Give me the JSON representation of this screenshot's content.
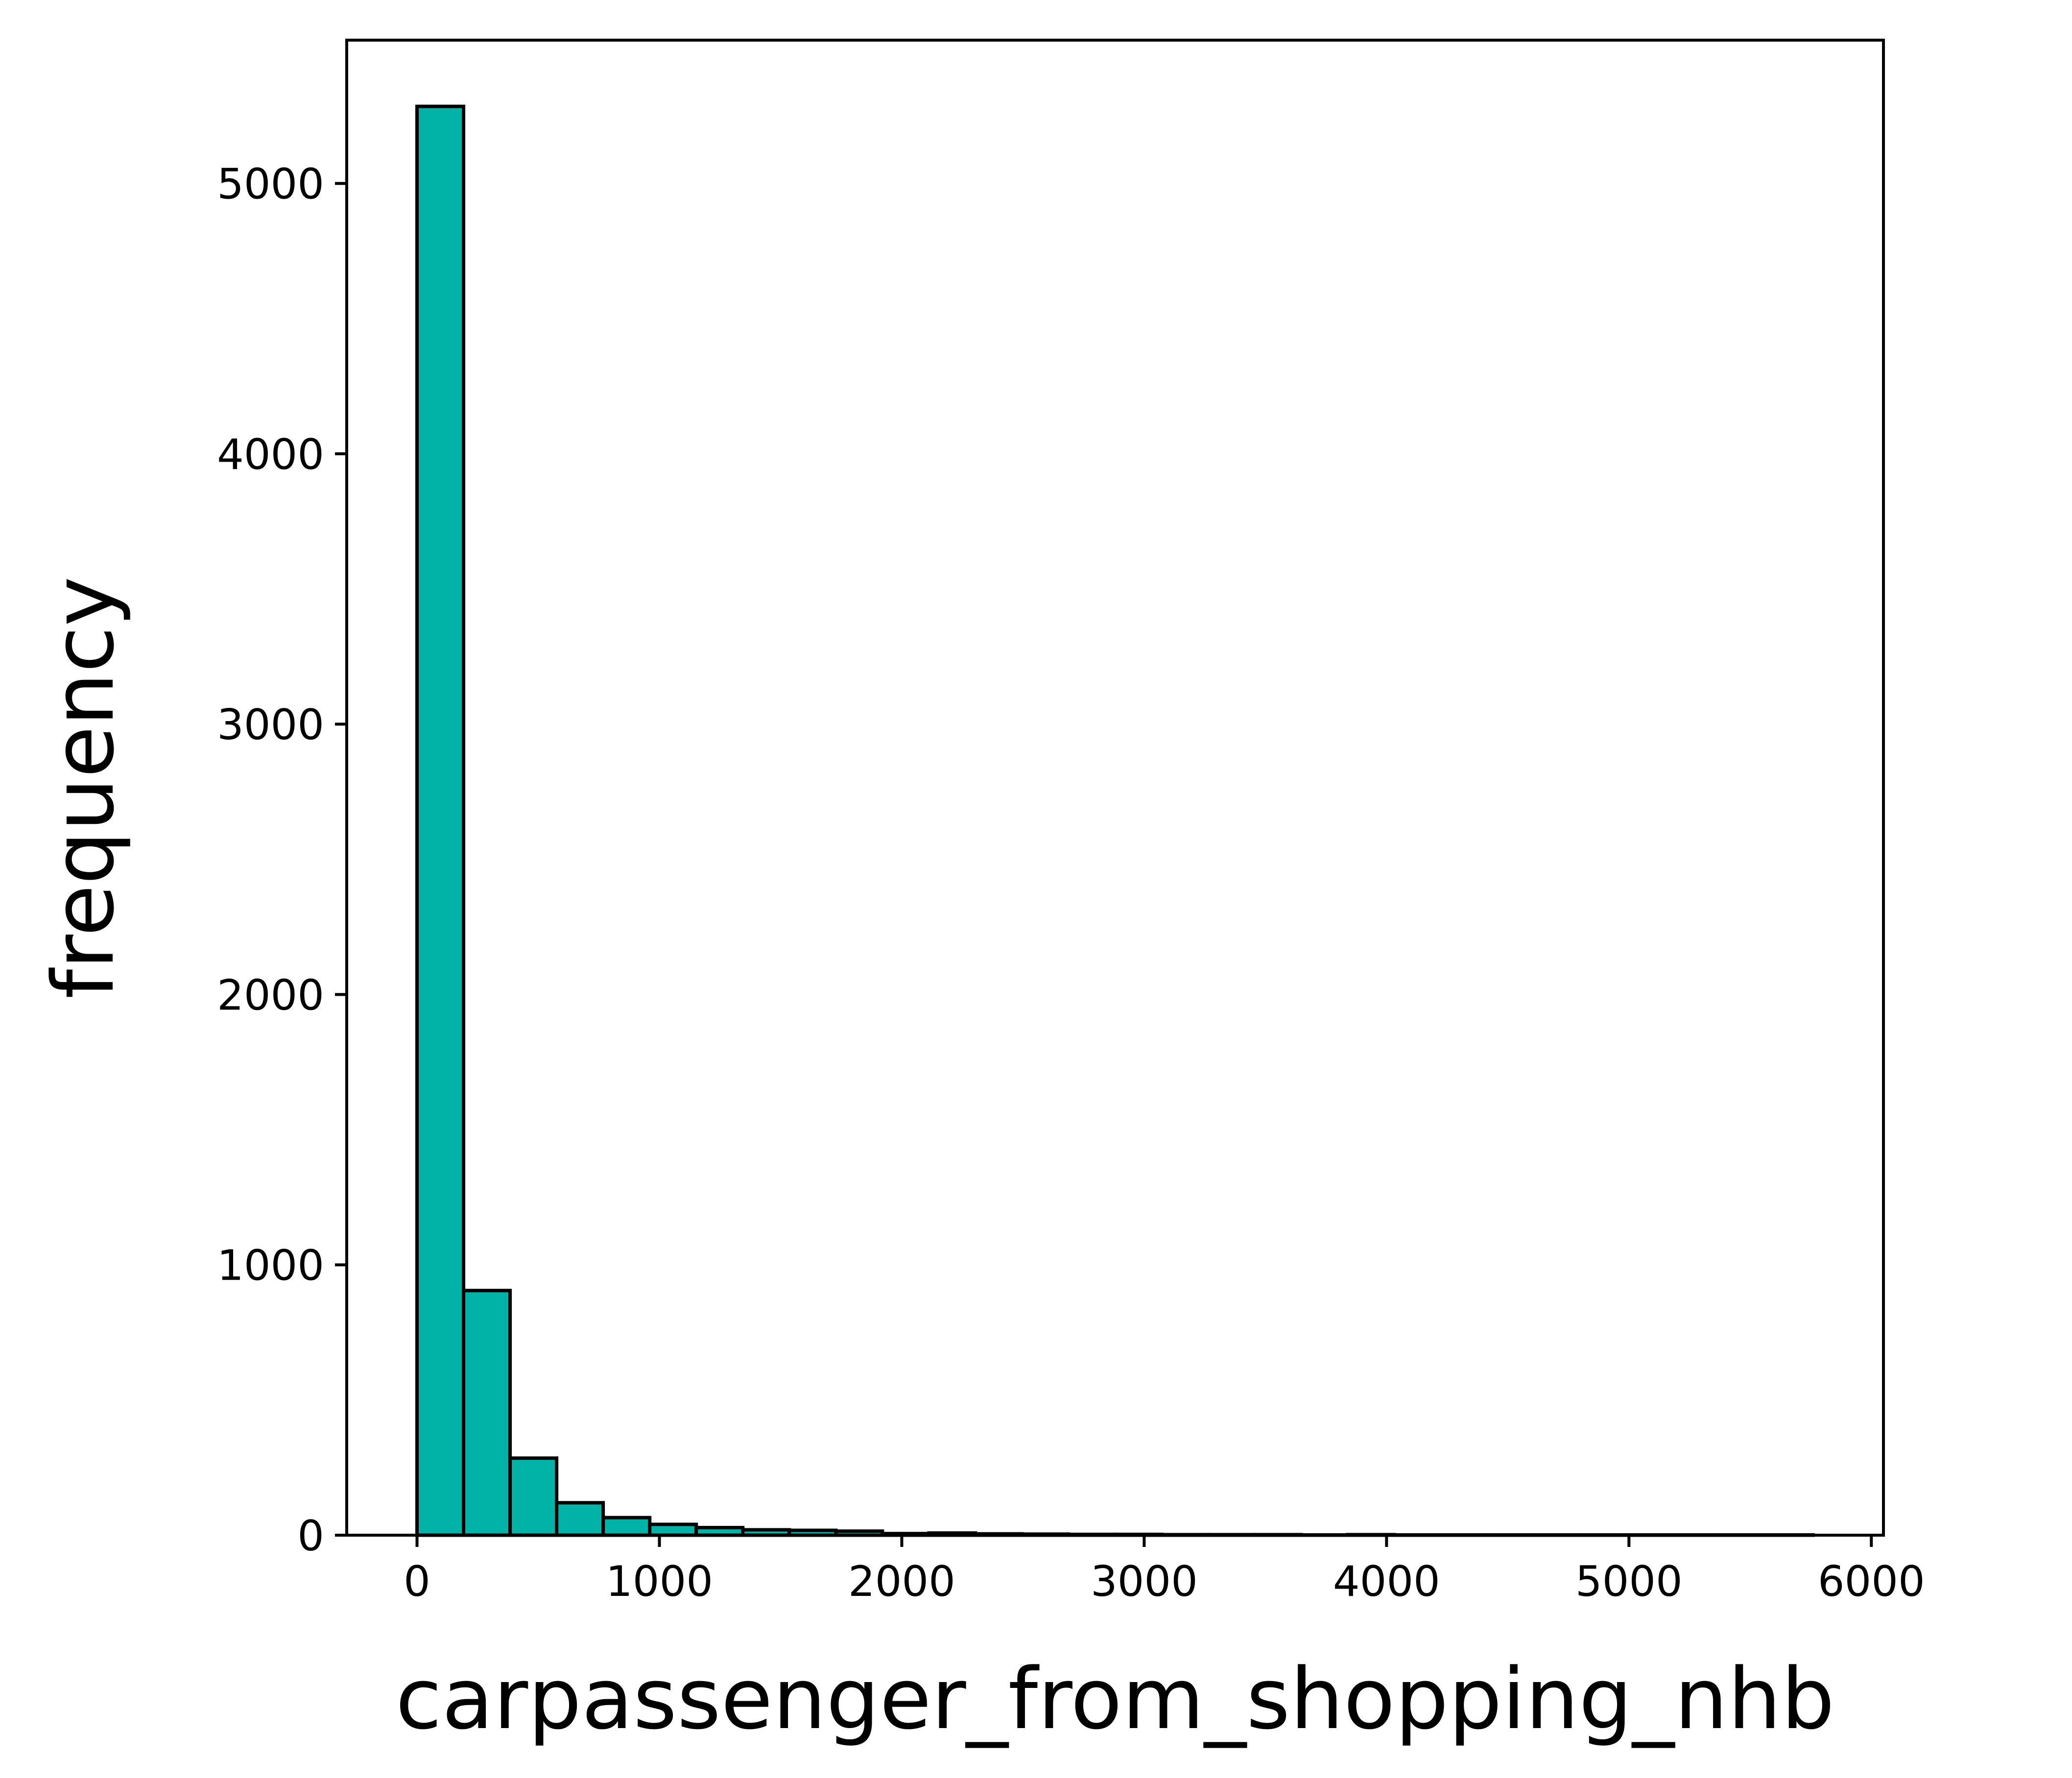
{
  "chart_data": {
    "type": "bar",
    "xlabel": "carpassenger_from_shopping_nhb",
    "ylabel": "frequency",
    "xlim": [
      -290,
      6050
    ],
    "ylim": [
      0,
      5530
    ],
    "xticks": [
      0,
      1000,
      2000,
      3000,
      4000,
      5000,
      6000
    ],
    "yticks": [
      0,
      1000,
      2000,
      3000,
      4000,
      5000
    ],
    "bin_width": 192,
    "bin_start": 0,
    "values": [
      5285,
      905,
      285,
      120,
      65,
      40,
      28,
      20,
      18,
      15,
      6,
      8,
      5,
      4,
      3,
      3,
      2,
      2,
      2,
      1,
      2,
      1,
      1,
      1,
      1,
      1,
      1,
      1,
      1,
      1
    ],
    "grid": false,
    "legend": "none",
    "bar_color": "#00b3a6",
    "edge_color": "#000000"
  }
}
